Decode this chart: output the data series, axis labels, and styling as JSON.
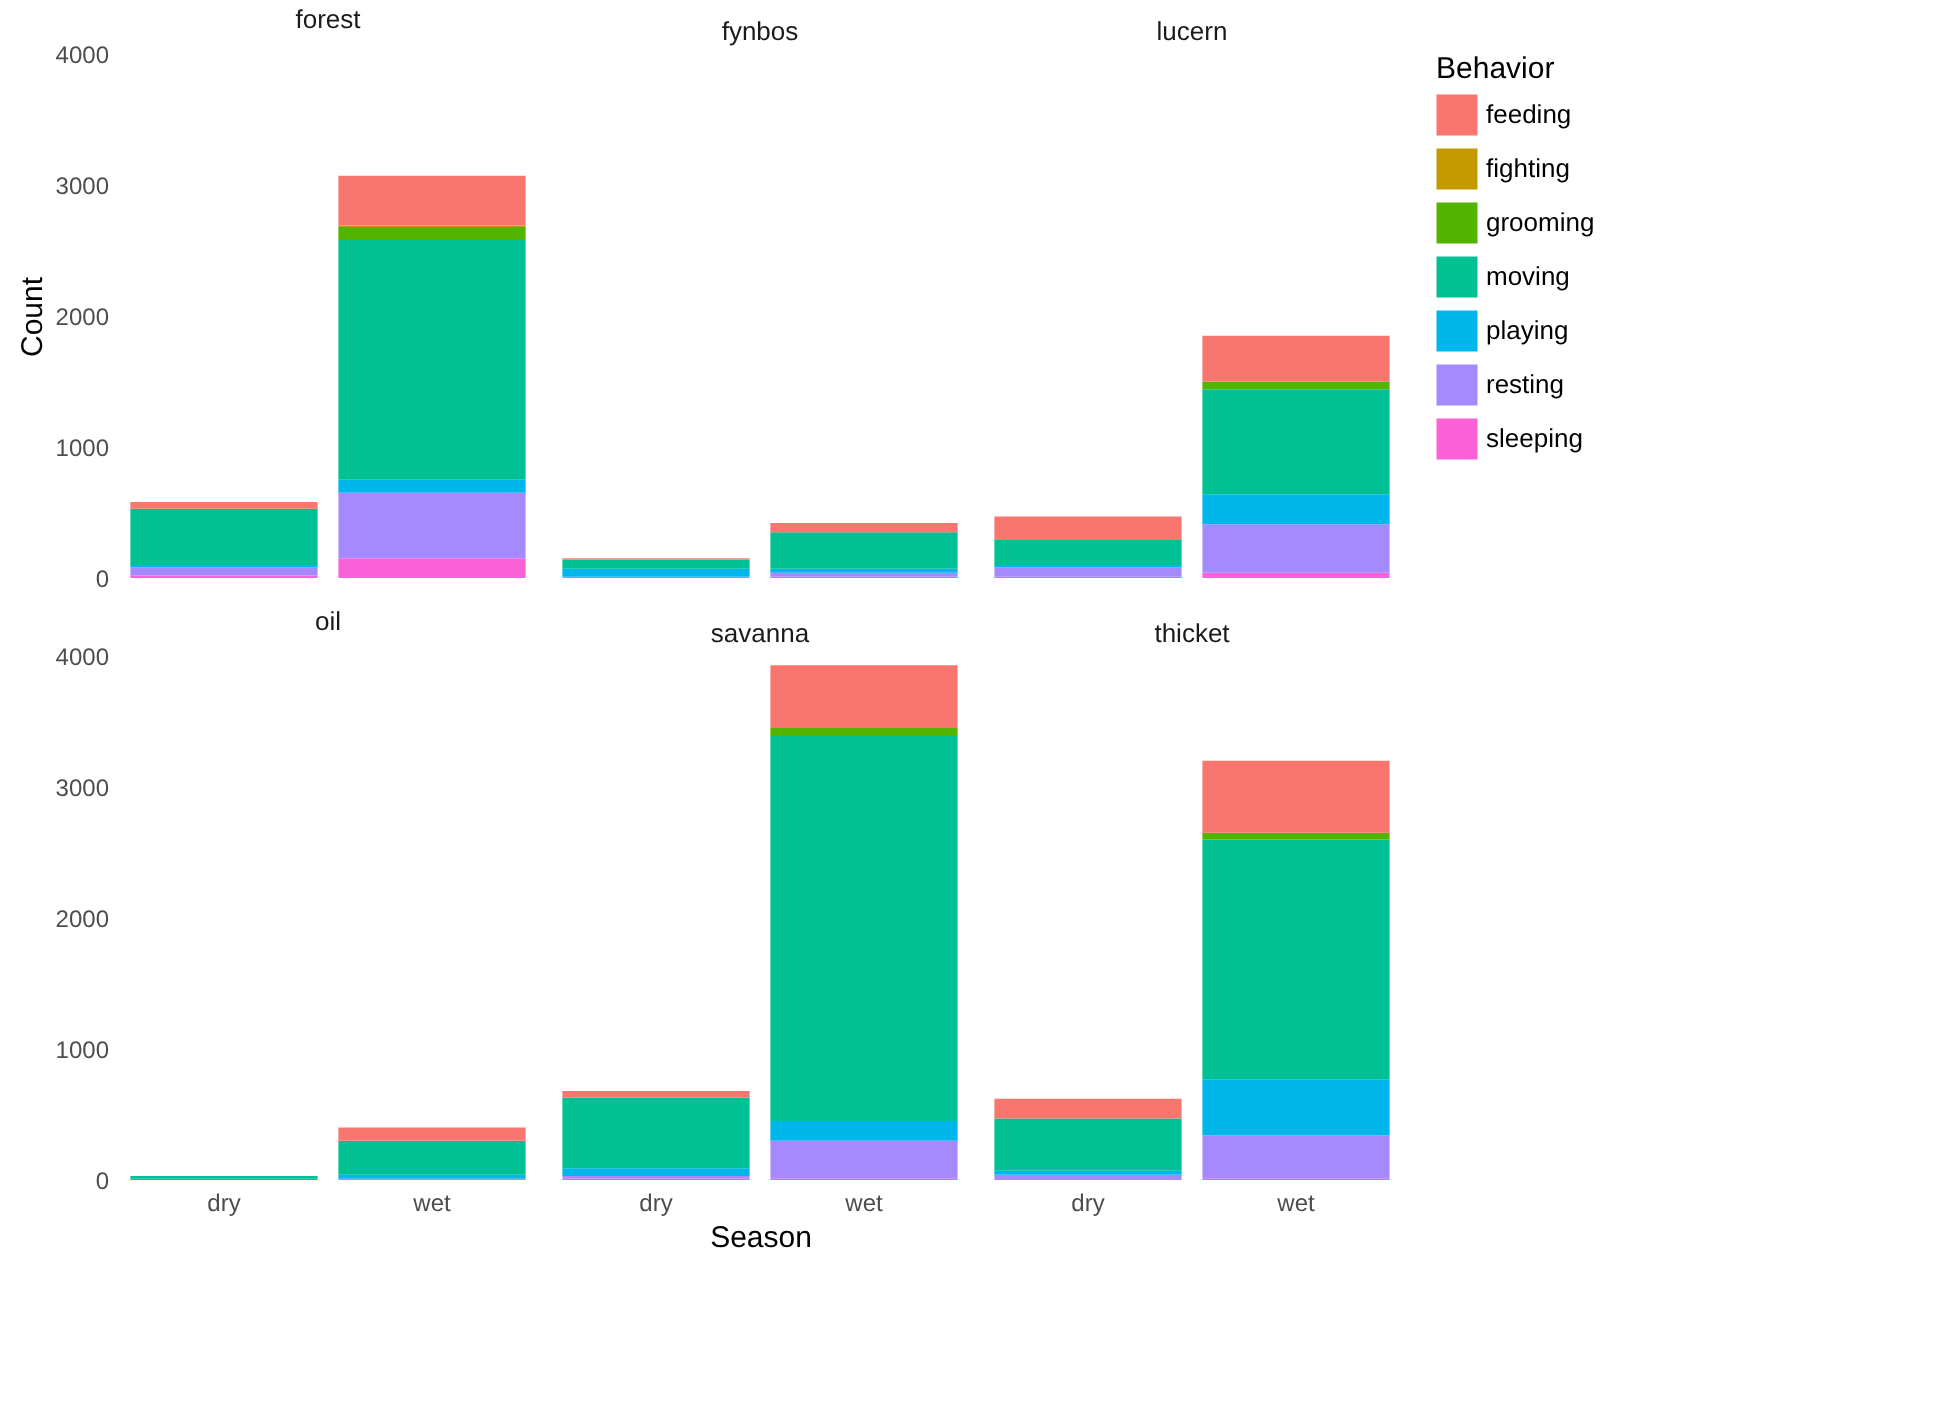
{
  "chart_data": [
    {
      "type": "bar",
      "title": "forest",
      "ylabel": "Count",
      "stacked": true,
      "tick_labels": "y",
      "legend": "right",
      "legend_title": "Behavior",
      "categories": [
        "dry",
        "wet"
      ],
      "ylim": [
        0,
        4000
      ],
      "yticks": [
        0,
        1000,
        2000,
        3000,
        4000
      ],
      "series": [
        {
          "name": "sleeping",
          "color": "#fb61d7",
          "values": [
            20,
            150
          ]
        },
        {
          "name": "resting",
          "color": "#a58aff",
          "values": [
            60,
            500
          ]
        },
        {
          "name": "playing",
          "color": "#00b6eb",
          "values": [
            20,
            100
          ]
        },
        {
          "name": "moving",
          "color": "#00c094",
          "values": [
            420,
            1830
          ]
        },
        {
          "name": "grooming",
          "color": "#53b400",
          "values": [
            10,
            100
          ]
        },
        {
          "name": "fighting",
          "color": "#c49a00",
          "values": [
            0,
            10
          ]
        },
        {
          "name": "feeding",
          "color": "#f8766d",
          "values": [
            50,
            380
          ]
        }
      ]
    },
    {
      "type": "bar",
      "title": "fynbos",
      "stacked": true,
      "tick_labels": false,
      "categories": [
        "dry",
        "wet"
      ],
      "ylim": [
        0,
        4000
      ],
      "yticks": [
        0,
        1000,
        2000,
        3000,
        4000
      ],
      "series": [
        {
          "name": "sleeping",
          "color": "#fb61d7",
          "values": [
            0,
            10
          ]
        },
        {
          "name": "resting",
          "color": "#a58aff",
          "values": [
            10,
            30
          ]
        },
        {
          "name": "playing",
          "color": "#00b6eb",
          "values": [
            60,
            30
          ]
        },
        {
          "name": "moving",
          "color": "#00c094",
          "values": [
            70,
            280
          ]
        },
        {
          "name": "grooming",
          "color": "#53b400",
          "values": [
            0,
            0
          ]
        },
        {
          "name": "fighting",
          "color": "#c49a00",
          "values": [
            0,
            0
          ]
        },
        {
          "name": "feeding",
          "color": "#f8766d",
          "values": [
            10,
            70
          ]
        }
      ]
    },
    {
      "type": "bar",
      "title": "lucern",
      "stacked": true,
      "tick_labels": false,
      "categories": [
        "dry",
        "wet"
      ],
      "ylim": [
        0,
        4000
      ],
      "yticks": [
        0,
        1000,
        2000,
        3000,
        4000
      ],
      "series": [
        {
          "name": "sleeping",
          "color": "#fb61d7",
          "values": [
            10,
            40
          ]
        },
        {
          "name": "resting",
          "color": "#a58aff",
          "values": [
            70,
            370
          ]
        },
        {
          "name": "playing",
          "color": "#00b6eb",
          "values": [
            20,
            230
          ]
        },
        {
          "name": "moving",
          "color": "#00c094",
          "values": [
            190,
            800
          ]
        },
        {
          "name": "grooming",
          "color": "#53b400",
          "values": [
            0,
            60
          ]
        },
        {
          "name": "fighting",
          "color": "#c49a00",
          "values": [
            0,
            0
          ]
        },
        {
          "name": "feeding",
          "color": "#f8766d",
          "values": [
            180,
            350
          ]
        }
      ]
    },
    {
      "type": "bar",
      "title": "oil",
      "stacked": true,
      "categories": [
        "dry",
        "wet"
      ],
      "ylim": [
        0,
        4000
      ],
      "yticks": [
        0,
        1000,
        2000,
        3000,
        4000
      ],
      "series": [
        {
          "name": "sleeping",
          "color": "#fb61d7",
          "values": [
            0,
            0
          ]
        },
        {
          "name": "resting",
          "color": "#a58aff",
          "values": [
            0,
            10
          ]
        },
        {
          "name": "playing",
          "color": "#00b6eb",
          "values": [
            10,
            30
          ]
        },
        {
          "name": "moving",
          "color": "#00c094",
          "values": [
            20,
            260
          ]
        },
        {
          "name": "grooming",
          "color": "#53b400",
          "values": [
            0,
            0
          ]
        },
        {
          "name": "fighting",
          "color": "#c49a00",
          "values": [
            0,
            0
          ]
        },
        {
          "name": "feeding",
          "color": "#f8766d",
          "values": [
            0,
            100
          ]
        }
      ]
    },
    {
      "type": "bar",
      "title": "savanna",
      "xlabel": "Season",
      "stacked": true,
      "tick_labels": "x",
      "categories": [
        "dry",
        "wet"
      ],
      "ylim": [
        0,
        4000
      ],
      "yticks": [
        0,
        1000,
        2000,
        3000,
        4000
      ],
      "series": [
        {
          "name": "sleeping",
          "color": "#fb61d7",
          "values": [
            10,
            10
          ]
        },
        {
          "name": "resting",
          "color": "#a58aff",
          "values": [
            20,
            290
          ]
        },
        {
          "name": "playing",
          "color": "#00b6eb",
          "values": [
            60,
            150
          ]
        },
        {
          "name": "moving",
          "color": "#00c094",
          "values": [
            540,
            2940
          ]
        },
        {
          "name": "grooming",
          "color": "#53b400",
          "values": [
            0,
            60
          ]
        },
        {
          "name": "fighting",
          "color": "#c49a00",
          "values": [
            0,
            0
          ]
        },
        {
          "name": "feeding",
          "color": "#f8766d",
          "values": [
            50,
            480
          ]
        }
      ]
    },
    {
      "type": "bar",
      "title": "thicket",
      "stacked": true,
      "tick_labels": "x",
      "categories": [
        "dry",
        "wet"
      ],
      "ylim": [
        0,
        4000
      ],
      "yticks": [
        0,
        1000,
        2000,
        3000,
        4000
      ],
      "series": [
        {
          "name": "sleeping",
          "color": "#fb61d7",
          "values": [
            0,
            10
          ]
        },
        {
          "name": "resting",
          "color": "#a58aff",
          "values": [
            40,
            330
          ]
        },
        {
          "name": "playing",
          "color": "#00b6eb",
          "values": [
            30,
            430
          ]
        },
        {
          "name": "moving",
          "color": "#00c094",
          "values": [
            400,
            1830
          ]
        },
        {
          "name": "grooming",
          "color": "#53b400",
          "values": [
            0,
            50
          ]
        },
        {
          "name": "fighting",
          "color": "#c49a00",
          "values": [
            0,
            0
          ]
        },
        {
          "name": "feeding",
          "color": "#f8766d",
          "values": [
            150,
            550
          ]
        }
      ]
    }
  ]
}
